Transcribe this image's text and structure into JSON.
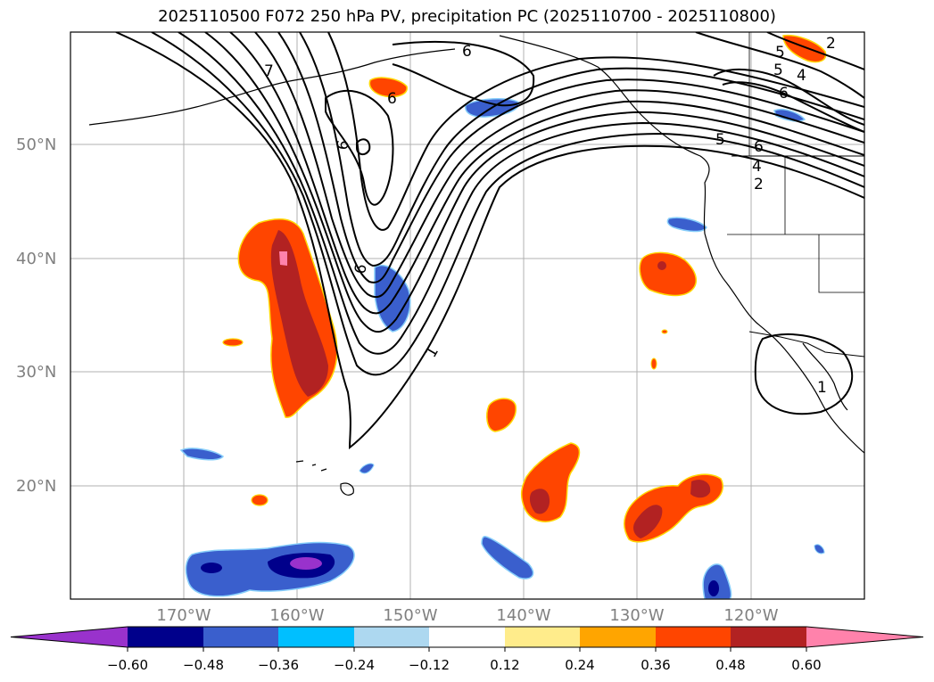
{
  "title": "2025110500 F072 250 hPa PV, precipitation PC (2025110700 - 2025110800)",
  "map": {
    "lat_labels": [
      "50°N",
      "40°N",
      "30°N",
      "20°N"
    ],
    "lon_labels": [
      "170°W",
      "160°W",
      "150°W",
      "140°W",
      "130°W",
      "120°W"
    ],
    "contour_labels": [
      "7",
      "6",
      "6",
      "5",
      "4",
      "6",
      "6",
      "5",
      "6",
      "4",
      "2",
      "6",
      "1",
      "1",
      "2",
      "4",
      "5"
    ]
  },
  "colorbar": {
    "ticks": [
      "−0.60",
      "−0.48",
      "−0.36",
      "−0.24",
      "−0.12",
      "0.12",
      "0.24",
      "0.36",
      "0.48",
      "0.60"
    ],
    "colors": [
      "#9932CC",
      "#00008B",
      "#3A5FCD",
      "#00BFFF",
      "#ADD8F0",
      "#FFFFFF",
      "#FFEC8B",
      "#FFA500",
      "#FF4500",
      "#B22222",
      "#FF82AB"
    ]
  },
  "colors": {
    "ocean": "#ffffff",
    "land_outline": "#000000",
    "grid": "#b0b0b0",
    "contour": "#000000"
  }
}
